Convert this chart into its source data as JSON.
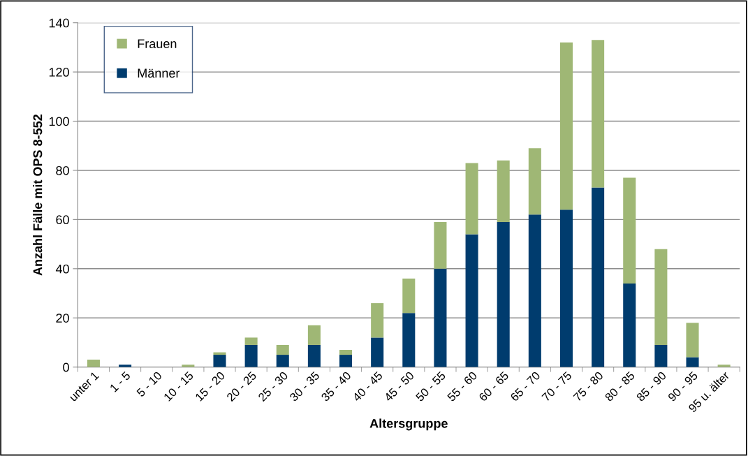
{
  "chart_data": {
    "type": "bar",
    "stacked": true,
    "xlabel": "Altersgruppe",
    "ylabel": "Anzahl Fälle mit OPS 8-552",
    "categories": [
      "unter 1",
      "1 - 5",
      "5 - 10",
      "10 - 15",
      "15 - 20",
      "20 - 25",
      "25 - 30",
      "30 - 35",
      "35 - 40",
      "40 - 45",
      "45 - 50",
      "50 - 55",
      "55 - 60",
      "60 - 65",
      "65 - 70",
      "70 - 75",
      "75 - 80",
      "80 - 85",
      "85 - 90",
      "90 - 95",
      "95 u. älter"
    ],
    "series": [
      {
        "name": "Männer",
        "color": "#003c6e",
        "values": [
          0,
          1,
          0,
          0,
          5,
          9,
          5,
          9,
          5,
          12,
          22,
          40,
          54,
          59,
          62,
          64,
          73,
          34,
          9,
          4,
          0
        ]
      },
      {
        "name": "Frauen",
        "color": "#9fb775",
        "values": [
          3,
          0,
          0,
          1,
          1,
          3,
          4,
          8,
          2,
          14,
          14,
          19,
          29,
          25,
          27,
          68,
          60,
          43,
          39,
          14,
          1
        ]
      }
    ],
    "ylim": [
      0,
      140
    ],
    "yticks": [
      0,
      20,
      40,
      60,
      80,
      100,
      120,
      140
    ],
    "grid": "y",
    "legend": "top left"
  }
}
